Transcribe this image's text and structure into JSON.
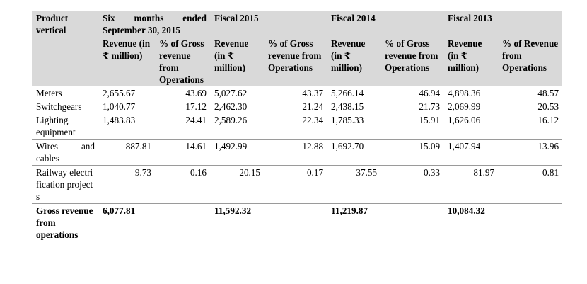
{
  "header": {
    "product_vertical": "Product vertical",
    "period_1": "Six months ended September 30, 2015",
    "period_2": "Fiscal 2015",
    "period_3": "Fiscal 2014",
    "period_4": "Fiscal 2013"
  },
  "subheader": {
    "revenue_p1": "Revenue (in ₹ million)",
    "pct_p1": "% of Gross revenue from Operations",
    "revenue_p2": "Revenue (in ₹ million)",
    "pct_p2": "% of Gross revenue from Operations",
    "revenue_p3": "Revenue (in ₹ million)",
    "pct_p3": "% of Gross revenue from Operations",
    "revenue_p4": "Revenue (in ₹ million)",
    "pct_p4": "% of Revenue from Operations"
  },
  "rows": [
    {
      "label": "Meters",
      "v": [
        "2,655.67",
        "43.69",
        "5,027.62",
        "43.37",
        "5,266.14",
        "46.94",
        "4,898.36",
        "48.57"
      ]
    },
    {
      "label": "Switchgears",
      "v": [
        "1,040.77",
        "17.12",
        "2,462.30",
        "21.24",
        "2,438.15",
        "21.73",
        "2,069.99",
        "20.53"
      ]
    },
    {
      "label": "Lighting equipment",
      "v": [
        "1,483.83",
        "24.41",
        "2,589.26",
        "22.34",
        "1,785.33",
        "15.91",
        "1,626.06",
        "16.12"
      ]
    },
    {
      "label": "Wires and cables",
      "v": [
        "887.81",
        "14.61",
        "1,492.99",
        "12.88",
        "1,692.70",
        "15.09",
        "1,407.94",
        "13.96"
      ]
    },
    {
      "label": "Railway electrification projects",
      "v": [
        "9.73",
        "0.16",
        "20.15",
        "0.17",
        "37.55",
        "0.33",
        "81.97",
        "0.81"
      ]
    }
  ],
  "total": {
    "label": "Gross revenue from operations",
    "v": [
      "6,077.81",
      "",
      "11,592.32",
      "",
      "11,219.87",
      "",
      "10,084.32",
      ""
    ]
  }
}
